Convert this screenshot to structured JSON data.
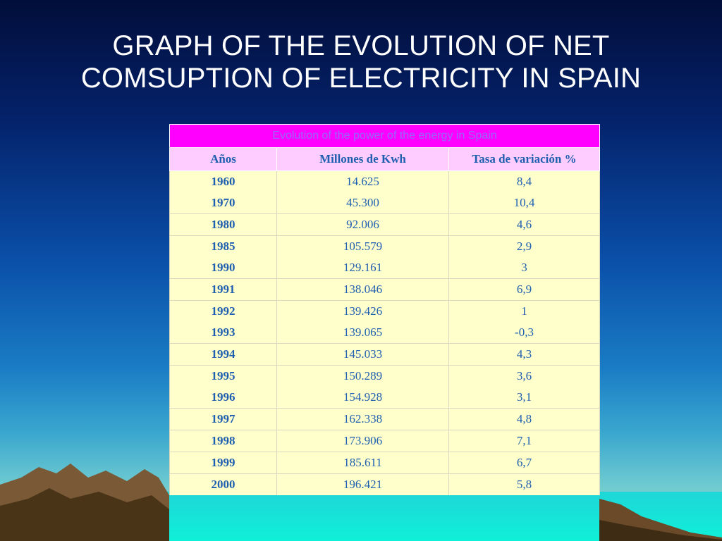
{
  "slide": {
    "title_line1": "GRAPH OF THE EVOLUTION OF NET",
    "title_line2": "COMSUPTION OF ELECTRICITY IN SPAIN"
  },
  "table": {
    "caption": "Evolution of the power of the energy in Spain",
    "headers": [
      "Años",
      "Millones de Kwh",
      "Tasa de variación %"
    ],
    "rows": [
      {
        "year": "1960",
        "kwh": "14.625",
        "rate": "8,4"
      },
      {
        "year": "1970",
        "kwh": "45.300",
        "rate": "10,4"
      },
      {
        "year": "1980",
        "kwh": "92.006",
        "rate": "4,6"
      },
      {
        "year": "1985",
        "kwh": "105.579",
        "rate": "2,9"
      },
      {
        "year": "1990",
        "kwh": "129.161",
        "rate": "3"
      },
      {
        "year": "1991",
        "kwh": "138.046",
        "rate": "6,9"
      },
      {
        "year": "1992",
        "kwh": "139.426",
        "rate": "1"
      },
      {
        "year": "1993",
        "kwh": "139.065",
        "rate": "-0,3"
      },
      {
        "year": "1994",
        "kwh": "145.033",
        "rate": "4,3"
      },
      {
        "year": "1995",
        "kwh": "150.289",
        "rate": "3,6"
      },
      {
        "year": "1996",
        "kwh": "154.928",
        "rate": "3,1"
      },
      {
        "year": "1997",
        "kwh": "162.338",
        "rate": "4,8"
      },
      {
        "year": "1998",
        "kwh": "173.906",
        "rate": "7,1"
      },
      {
        "year": "1999",
        "kwh": "185.611",
        "rate": "6,7"
      },
      {
        "year": "2000",
        "kwh": "196.421",
        "rate": "5,8"
      }
    ]
  },
  "colors": {
    "caption_bg": "#ff00ff",
    "header_bg": "#ffccff",
    "body_bg": "#ffffcc",
    "text": "#1f5fb0"
  }
}
